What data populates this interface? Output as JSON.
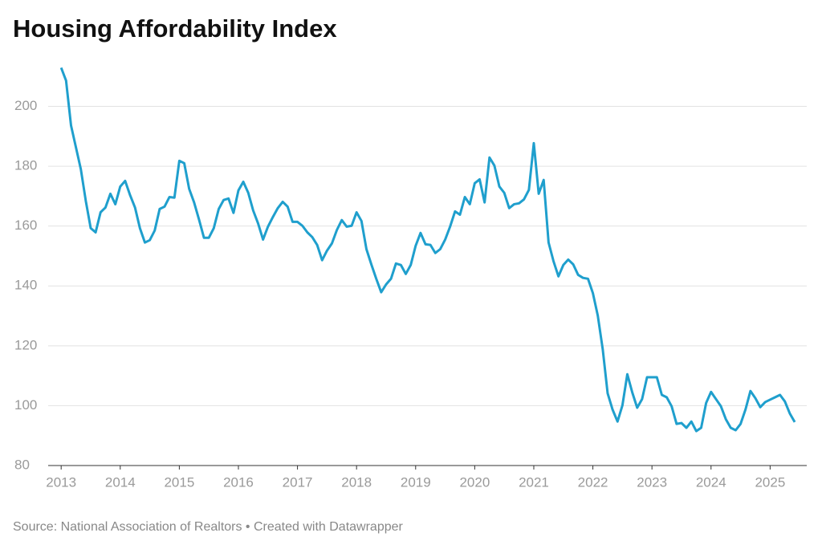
{
  "chart_data": {
    "type": "line",
    "title": "Housing Affordability Index",
    "source": "Source: National Association of Realtors • Created with Datawrapper",
    "x": [
      2013.0,
      2013.083,
      2013.167,
      2013.25,
      2013.333,
      2013.417,
      2013.5,
      2013.583,
      2013.667,
      2013.75,
      2013.833,
      2013.917,
      2014.0,
      2014.083,
      2014.167,
      2014.25,
      2014.333,
      2014.417,
      2014.5,
      2014.583,
      2014.667,
      2014.75,
      2014.833,
      2014.917,
      2015.0,
      2015.083,
      2015.167,
      2015.25,
      2015.333,
      2015.417,
      2015.5,
      2015.583,
      2015.667,
      2015.75,
      2015.833,
      2015.917,
      2016.0,
      2016.083,
      2016.167,
      2016.25,
      2016.333,
      2016.417,
      2016.5,
      2016.583,
      2016.667,
      2016.75,
      2016.833,
      2016.917,
      2017.0,
      2017.083,
      2017.167,
      2017.25,
      2017.333,
      2017.417,
      2017.5,
      2017.583,
      2017.667,
      2017.75,
      2017.833,
      2017.917,
      2018.0,
      2018.083,
      2018.167,
      2018.25,
      2018.333,
      2018.417,
      2018.5,
      2018.583,
      2018.667,
      2018.75,
      2018.833,
      2018.917,
      2019.0,
      2019.083,
      2019.167,
      2019.25,
      2019.333,
      2019.417,
      2019.5,
      2019.583,
      2019.667,
      2019.75,
      2019.833,
      2019.917,
      2020.0,
      2020.083,
      2020.167,
      2020.25,
      2020.333,
      2020.417,
      2020.5,
      2020.583,
      2020.667,
      2020.75,
      2020.833,
      2020.917,
      2021.0,
      2021.083,
      2021.167,
      2021.25,
      2021.333,
      2021.417,
      2021.5,
      2021.583,
      2021.667,
      2021.75,
      2021.833,
      2021.917,
      2022.0,
      2022.083,
      2022.167,
      2022.25,
      2022.333,
      2022.417,
      2022.5,
      2022.583,
      2022.667,
      2022.75,
      2022.833,
      2022.917,
      2023.0,
      2023.083,
      2023.167,
      2023.25,
      2023.333,
      2023.417,
      2023.5,
      2023.583,
      2023.667,
      2023.75,
      2023.833,
      2023.917,
      2024.0,
      2024.083,
      2024.167,
      2024.25,
      2024.333,
      2024.417,
      2024.5,
      2024.583,
      2024.667,
      2024.75,
      2024.833,
      2024.917,
      2025.0,
      2025.083,
      2025.167,
      2025.25,
      2025.333,
      2025.417
    ],
    "series": [
      {
        "name": "Housing Affordability Index",
        "color": "#1f9fcd",
        "values": [
          212.9,
          208.6,
          193.6,
          186.3,
          179,
          168.4,
          159.3,
          157.9,
          164.6,
          166.2,
          170.8,
          167.3,
          173.2,
          175.1,
          170.3,
          166.2,
          159.3,
          154.5,
          155.3,
          158.5,
          165.7,
          166.5,
          169.7,
          169.5,
          181.8,
          181,
          172.4,
          167.9,
          162.2,
          156.1,
          156.1,
          159.3,
          165.7,
          168.7,
          169.2,
          164.4,
          171.9,
          174.8,
          171.1,
          165.2,
          160.9,
          155.5,
          159.8,
          163,
          166,
          168.1,
          166.5,
          161.4,
          161.4,
          160.1,
          157.9,
          156.3,
          153.7,
          148.6,
          151.8,
          154.2,
          158.7,
          162,
          159.8,
          160.1,
          164.6,
          161.7,
          152.3,
          147.2,
          142.4,
          137.9,
          140.5,
          142.4,
          147.5,
          147,
          144,
          147,
          153.4,
          157.7,
          153.9,
          153.7,
          151,
          152.3,
          155.5,
          159.8,
          164.9,
          163.8,
          169.7,
          167.3,
          174.3,
          175.6,
          167.9,
          182.9,
          180.2,
          173.2,
          171.1,
          166,
          167.3,
          167.6,
          168.9,
          172.1,
          187.7,
          170.8,
          175.4,
          154.5,
          148.3,
          143.2,
          147,
          148.8,
          147.2,
          143.7,
          142.7,
          142.4,
          137.6,
          130.1,
          118.8,
          104.1,
          98.7,
          94.7,
          100.1,
          110.5,
          104.4,
          99.3,
          102.2,
          109.5,
          109.5,
          109.5,
          103.6,
          102.8,
          99.8,
          93.9,
          94.2,
          92.6,
          94.7,
          91.5,
          92.6,
          100.9,
          104.6,
          102.2,
          99.8,
          95.5,
          92.6,
          91.8,
          93.9,
          98.7,
          104.9,
          102.5,
          99.5,
          101.2,
          102,
          102.8,
          103.6,
          101.4,
          97.4,
          94.5
        ]
      }
    ],
    "xlim": [
      2012.78,
      2025.62
    ],
    "xticks": [
      2013,
      2014,
      2015,
      2016,
      2017,
      2018,
      2019,
      2020,
      2021,
      2022,
      2023,
      2024,
      2025
    ],
    "ylim": [
      80,
      213
    ],
    "yticks": [
      80,
      100,
      120,
      140,
      160,
      180,
      200
    ],
    "grid": true
  }
}
